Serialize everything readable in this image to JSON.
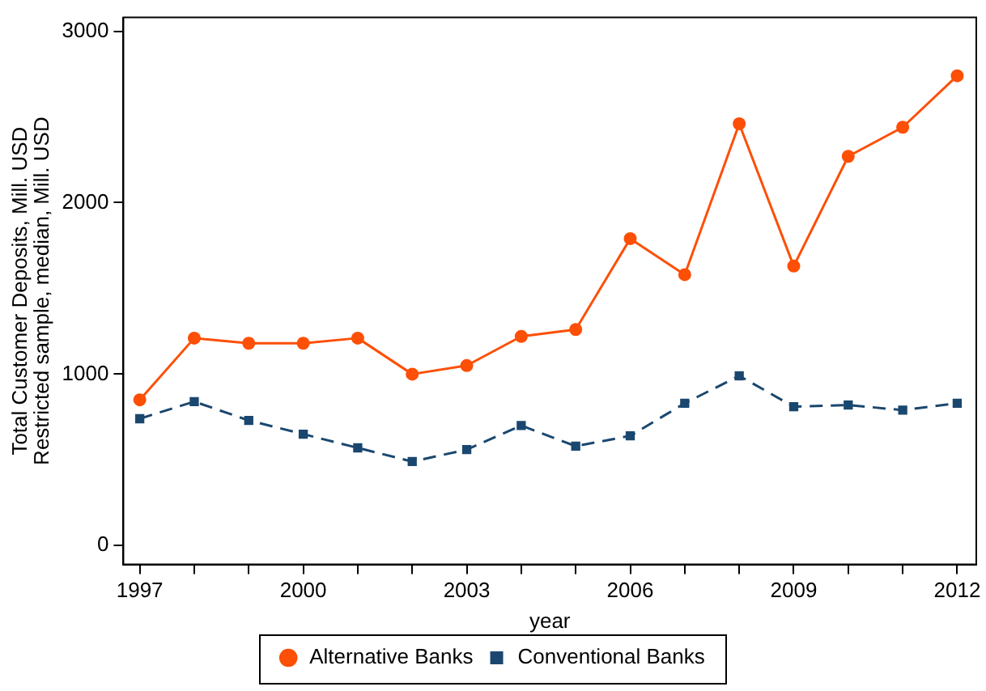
{
  "chart_data": {
    "type": "line",
    "xlabel": "year",
    "ylabel": "Total Customer Deposits, Mill. USD\nRestricted sample, median, Mill. USD",
    "x": [
      1997,
      1998,
      1999,
      2000,
      2001,
      2002,
      2003,
      2004,
      2005,
      2006,
      2007,
      2008,
      2009,
      2010,
      2011,
      2012
    ],
    "series": [
      {
        "name": "Alternative Banks",
        "color": "#fd4f06",
        "marker": "circle",
        "line_style": "solid",
        "values": [
          850,
          1210,
          1180,
          1180,
          1210,
          1000,
          1050,
          1220,
          1260,
          1790,
          1580,
          2460,
          1630,
          2270,
          2440,
          2740
        ]
      },
      {
        "name": "Conventional Banks",
        "color": "#1a476f",
        "marker": "square",
        "line_style": "dashed",
        "values": [
          740,
          840,
          730,
          650,
          570,
          490,
          560,
          700,
          580,
          640,
          830,
          990,
          810,
          820,
          790,
          830
        ]
      }
    ],
    "xlim": [
      1996.7,
      2012.35
    ],
    "ylim": [
      -110,
      3080
    ],
    "xticks": [
      1997,
      {
        "value": 1998,
        "label": null
      },
      {
        "value": 1999,
        "label": null
      },
      2000,
      {
        "value": 2001,
        "label": null
      },
      {
        "value": 2002,
        "label": null
      },
      2003,
      {
        "value": 2004,
        "label": null
      },
      {
        "value": 2005,
        "label": null
      },
      2006,
      {
        "value": 2007,
        "label": null
      },
      {
        "value": 2008,
        "label": null
      },
      2009,
      {
        "value": 2010,
        "label": null
      },
      {
        "value": 2011,
        "label": null
      },
      2012
    ],
    "yticks": [
      0,
      1000,
      2000,
      3000
    ],
    "grid": false,
    "legend": "bottom"
  }
}
